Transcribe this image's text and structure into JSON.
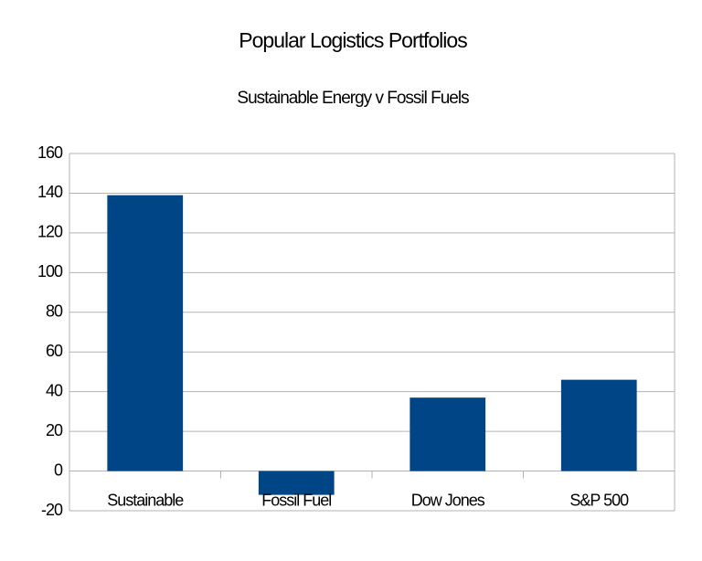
{
  "chart_data": {
    "type": "bar",
    "title": "Popular Logistics Portfolios",
    "subtitle": "Sustainable Energy v Fossil Fuels",
    "categories": [
      "Sustainable",
      "Fossil Fuel",
      "Dow Jones",
      "S&P 500"
    ],
    "values": [
      139,
      -12,
      37,
      46
    ],
    "color": "#004586",
    "ylim": [
      -20,
      160
    ],
    "yticks": [
      -20,
      0,
      20,
      40,
      60,
      80,
      100,
      120,
      140,
      160
    ],
    "grid": true
  }
}
